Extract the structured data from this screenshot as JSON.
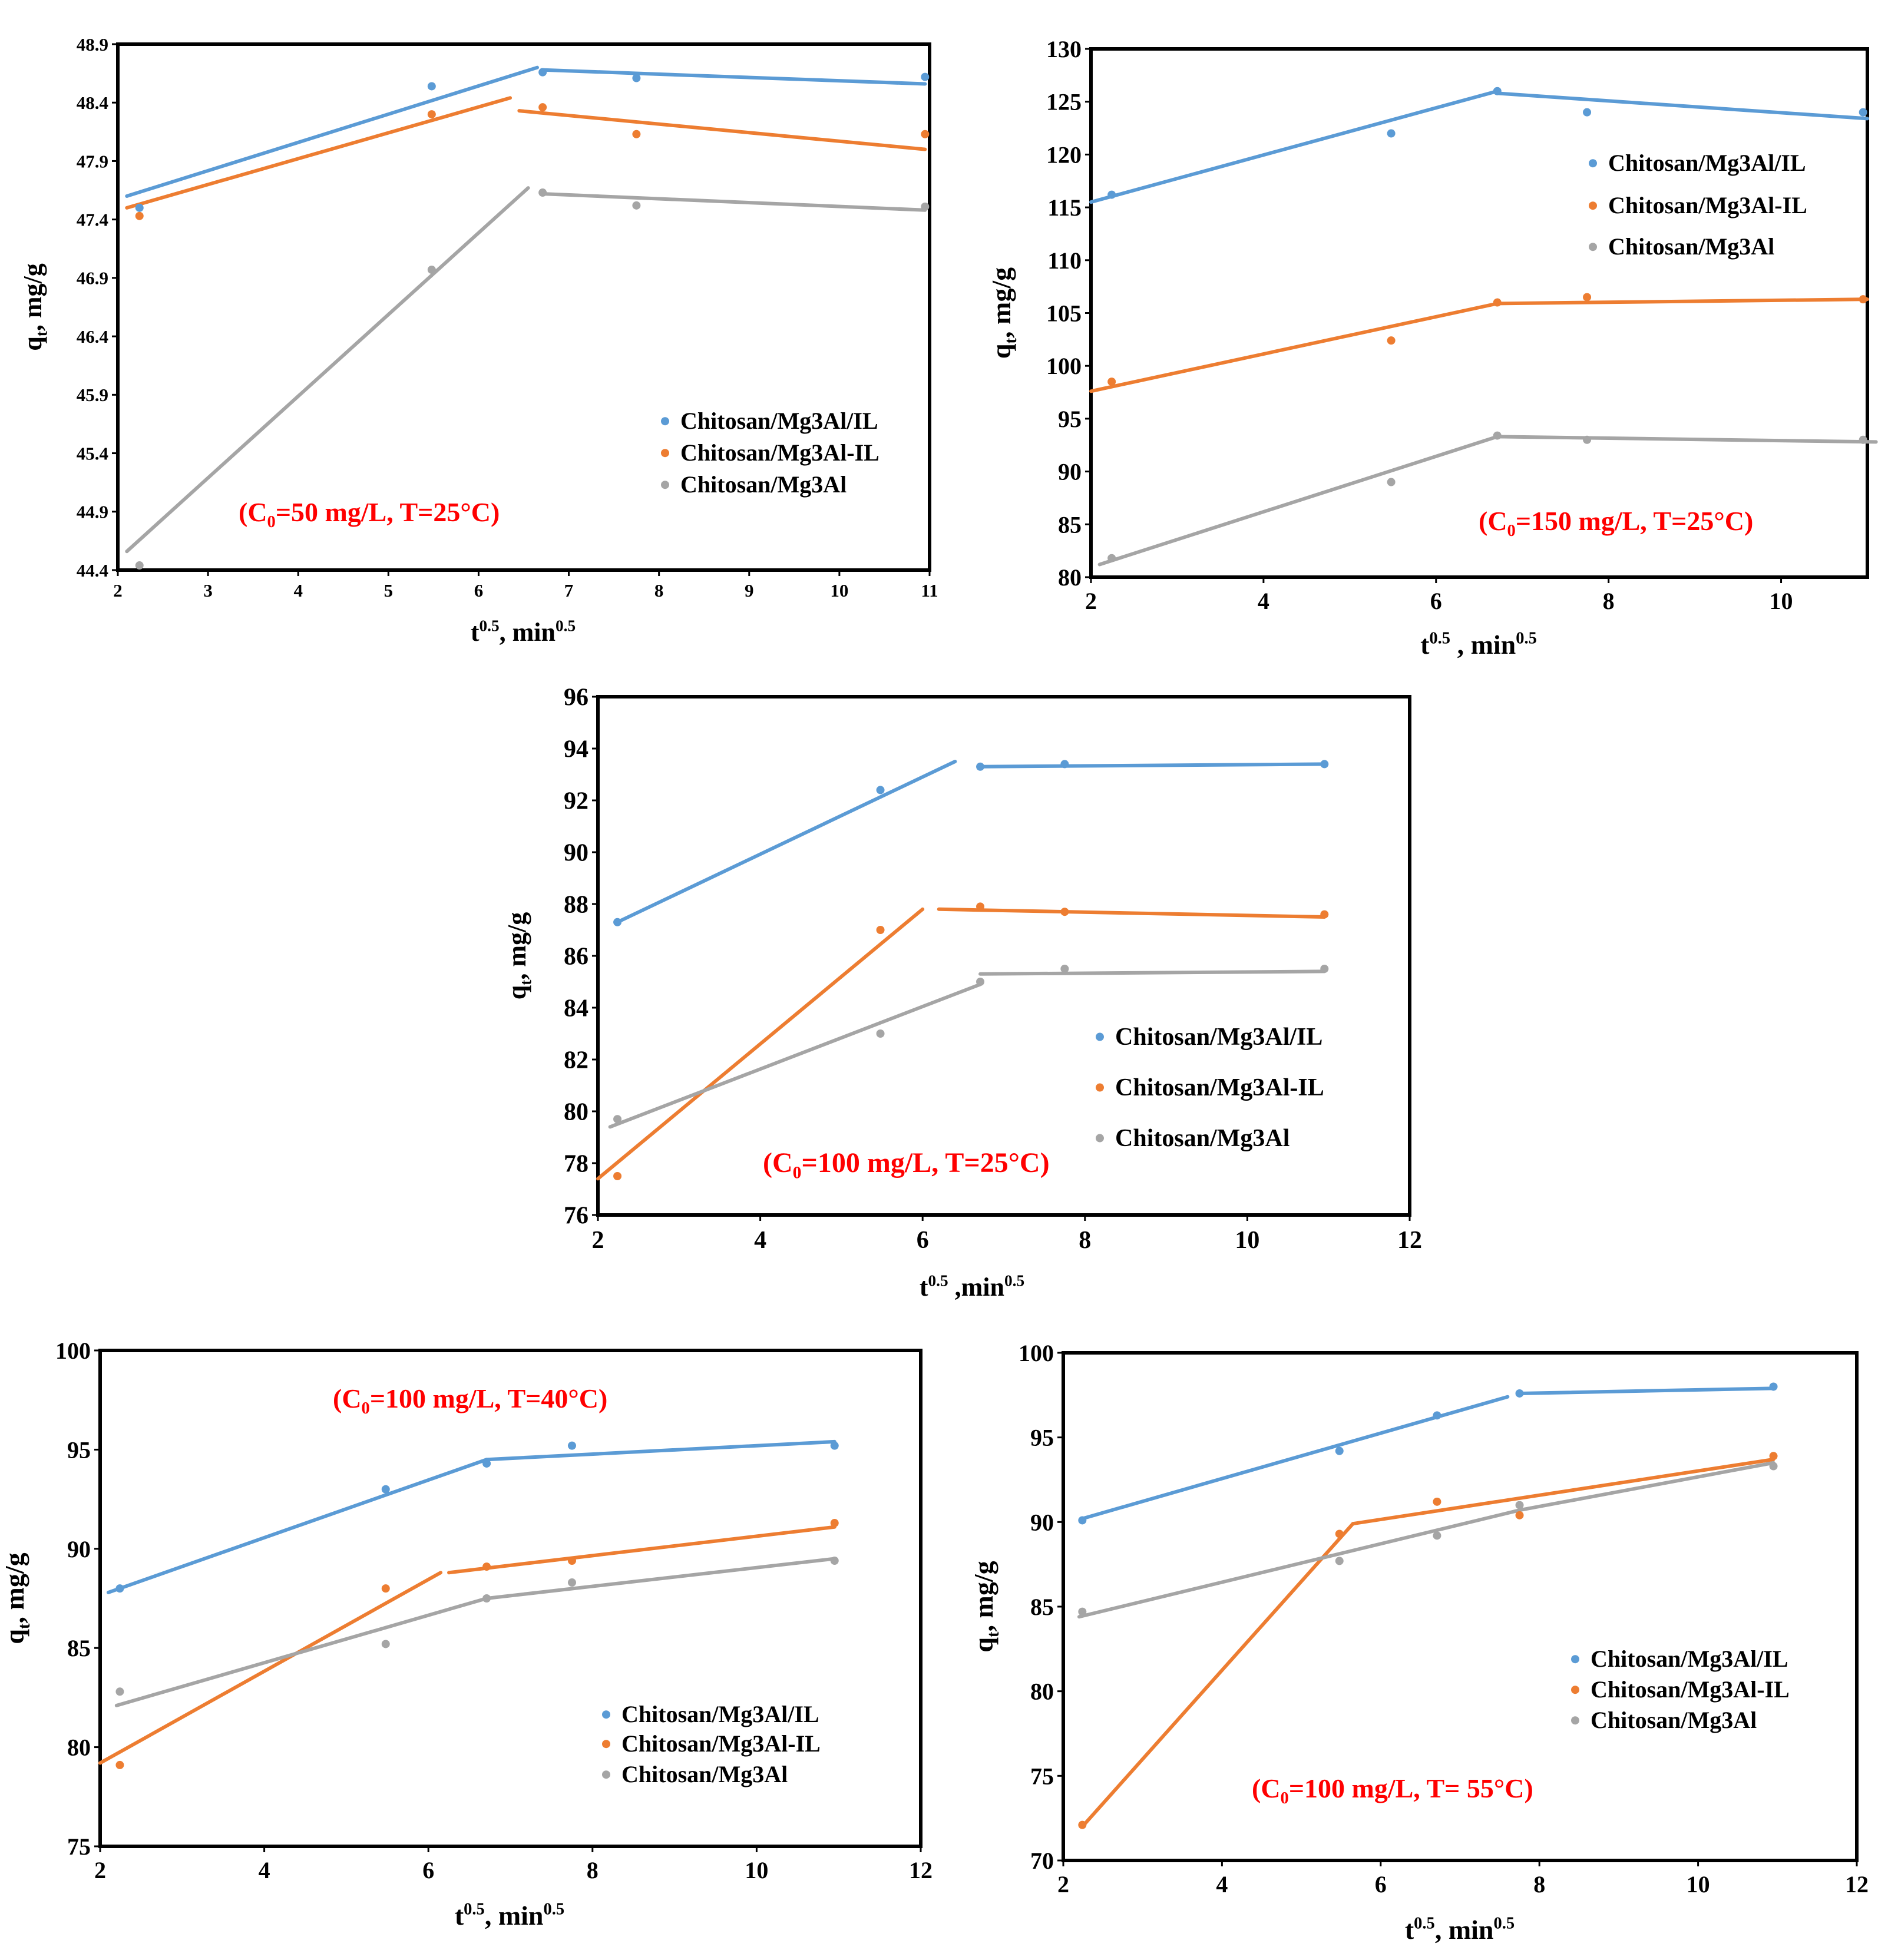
{
  "legend_labels": [
    "Chitosan/Mg3Al/IL",
    "Chitosan/Mg3Al-IL",
    "Chitosan/Mg3Al"
  ],
  "colors": {
    "il": "#5B9BD5",
    "ilDash": "#ED7D31",
    "base": "#A5A5A5",
    "condition": "#FF0000"
  },
  "chart_data": [
    {
      "type": "scatter",
      "condition_parts": [
        "(C",
        "0",
        "=50 mg/L, T=25°C)"
      ],
      "xlabel_parts": [
        "t",
        "0.5",
        ", min",
        "0.5"
      ],
      "ylabel_parts": [
        "q",
        "t",
        ", mg/g"
      ],
      "xlim": [
        2,
        11
      ],
      "ylim": [
        44.4,
        48.9
      ],
      "xticks": [
        2,
        3,
        4,
        5,
        6,
        7,
        8,
        9,
        10,
        11
      ],
      "yticks": [
        44.4,
        44.9,
        45.4,
        45.9,
        46.4,
        46.9,
        47.4,
        47.9,
        48.4,
        48.9
      ],
      "legend_position": "bottom-right",
      "series": [
        {
          "name": "Chitosan/Mg3Al/IL",
          "x": [
            2.24,
            5.48,
            6.71,
            7.75,
            10.95
          ],
          "y": [
            47.5,
            48.54,
            48.66,
            48.61,
            48.62
          ]
        },
        {
          "name": "Chitosan/Mg3Al-IL",
          "x": [
            2.24,
            5.48,
            6.71,
            7.75,
            10.95
          ],
          "y": [
            47.43,
            48.3,
            48.36,
            48.13,
            48.13
          ]
        },
        {
          "name": "Chitosan/Mg3Al",
          "x": [
            2.24,
            5.48,
            6.71,
            7.75,
            10.95
          ],
          "y": [
            44.44,
            46.97,
            47.63,
            47.52,
            47.51
          ]
        }
      ],
      "fits": [
        {
          "series": "Chitosan/Mg3Al/IL",
          "x": [
            2.1,
            6.65
          ],
          "y": [
            47.6,
            48.7
          ]
        },
        {
          "series": "Chitosan/Mg3Al/IL",
          "x": [
            6.7,
            10.95
          ],
          "y": [
            48.68,
            48.56
          ]
        },
        {
          "series": "Chitosan/Mg3Al-IL",
          "x": [
            2.1,
            6.35
          ],
          "y": [
            47.5,
            48.44
          ]
        },
        {
          "series": "Chitosan/Mg3Al-IL",
          "x": [
            6.45,
            10.95
          ],
          "y": [
            48.33,
            48.0
          ]
        },
        {
          "series": "Chitosan/Mg3Al",
          "x": [
            2.1,
            6.55
          ],
          "y": [
            44.56,
            47.67
          ]
        },
        {
          "series": "Chitosan/Mg3Al",
          "x": [
            6.7,
            10.95
          ],
          "y": [
            47.62,
            47.48
          ]
        }
      ]
    },
    {
      "type": "scatter",
      "condition_parts": [
        "(C",
        "0",
        "=150 mg/L, T=25°C)"
      ],
      "xlabel_parts": [
        "t",
        "0.5",
        " , min",
        "0.5"
      ],
      "ylabel_parts": [
        "q",
        "t",
        ",  mg/g"
      ],
      "xlim": [
        2,
        11
      ],
      "ylim": [
        80,
        130
      ],
      "xticks": [
        2,
        4,
        6,
        8,
        10
      ],
      "yticks": [
        80,
        85,
        90,
        95,
        100,
        105,
        110,
        115,
        120,
        125,
        130
      ],
      "legend_position": "top-right",
      "series": [
        {
          "name": "Chitosan/Mg3Al/IL",
          "x": [
            2.24,
            5.48,
            6.71,
            7.75,
            10.95
          ],
          "y": [
            116.2,
            122.0,
            126.0,
            124.0,
            124.0
          ]
        },
        {
          "name": "Chitosan/Mg3Al-IL",
          "x": [
            2.24,
            5.48,
            6.71,
            7.75,
            10.95
          ],
          "y": [
            98.5,
            102.4,
            106.0,
            106.5,
            106.3
          ]
        },
        {
          "name": "Chitosan/Mg3Al",
          "x": [
            2.24,
            5.48,
            6.71,
            7.75,
            10.95
          ],
          "y": [
            81.8,
            89.0,
            93.4,
            93.0,
            93.0
          ]
        }
      ],
      "fits": [
        {
          "series": "Chitosan/Mg3Al/IL",
          "x": [
            2.0,
            6.71
          ],
          "y": [
            115.5,
            126.0
          ]
        },
        {
          "series": "Chitosan/Mg3Al/IL",
          "x": [
            6.71,
            11.0
          ],
          "y": [
            125.8,
            123.4
          ]
        },
        {
          "series": "Chitosan/Mg3Al-IL",
          "x": [
            2.0,
            6.71
          ],
          "y": [
            97.6,
            105.9
          ]
        },
        {
          "series": "Chitosan/Mg3Al-IL",
          "x": [
            6.71,
            11.0
          ],
          "y": [
            105.9,
            106.3
          ]
        },
        {
          "series": "Chitosan/Mg3Al",
          "x": [
            2.1,
            6.71
          ],
          "y": [
            81.2,
            93.3
          ]
        },
        {
          "series": "Chitosan/Mg3Al",
          "x": [
            6.71,
            11.1
          ],
          "y": [
            93.3,
            92.8
          ]
        }
      ]
    },
    {
      "type": "scatter",
      "condition_parts": [
        "(C",
        "0",
        "=100 mg/L, T=25°C)"
      ],
      "xlabel_parts": [
        "t",
        "0.5",
        " ,min",
        "0.5"
      ],
      "ylabel_parts": [
        "q",
        "t",
        ", mg/g"
      ],
      "xlim": [
        2,
        12
      ],
      "ylim": [
        76,
        96
      ],
      "xticks": [
        2,
        4,
        6,
        8,
        10,
        12
      ],
      "yticks": [
        76,
        78,
        80,
        82,
        84,
        86,
        88,
        90,
        92,
        94,
        96
      ],
      "legend_position": "bottom-right",
      "series": [
        {
          "name": "Chitosan/Mg3Al/IL",
          "x": [
            2.24,
            5.48,
            6.71,
            7.75,
            10.95
          ],
          "y": [
            87.3,
            92.4,
            93.3,
            93.4,
            93.4
          ]
        },
        {
          "name": "Chitosan/Mg3Al-IL",
          "x": [
            2.24,
            5.48,
            6.71,
            7.75,
            10.95
          ],
          "y": [
            77.5,
            87.0,
            87.9,
            87.7,
            87.6
          ]
        },
        {
          "name": "Chitosan/Mg3Al",
          "x": [
            2.24,
            5.48,
            6.71,
            7.75,
            10.95
          ],
          "y": [
            79.7,
            83.0,
            85.0,
            85.5,
            85.5
          ]
        }
      ],
      "fits": [
        {
          "series": "Chitosan/Mg3Al/IL",
          "x": [
            2.24,
            6.4
          ],
          "y": [
            87.3,
            93.5
          ]
        },
        {
          "series": "Chitosan/Mg3Al/IL",
          "x": [
            6.7,
            10.95
          ],
          "y": [
            93.3,
            93.4
          ]
        },
        {
          "series": "Chitosan/Mg3Al-IL",
          "x": [
            2.0,
            6.0
          ],
          "y": [
            77.4,
            87.8
          ]
        },
        {
          "series": "Chitosan/Mg3Al-IL",
          "x": [
            6.2,
            10.95
          ],
          "y": [
            87.8,
            87.5
          ]
        },
        {
          "series": "Chitosan/Mg3Al",
          "x": [
            2.15,
            6.71
          ],
          "y": [
            79.4,
            84.9
          ]
        },
        {
          "series": "Chitosan/Mg3Al",
          "x": [
            6.71,
            10.95
          ],
          "y": [
            85.3,
            85.4
          ]
        }
      ]
    },
    {
      "type": "scatter",
      "condition_parts": [
        "(C",
        "0",
        "=100 mg/L, T=40°C)"
      ],
      "xlabel_parts": [
        "t",
        "0.5",
        ", min",
        "0.5"
      ],
      "ylabel_parts": [
        "q",
        "t",
        ", mg/g"
      ],
      "xlim": [
        2,
        12
      ],
      "ylim": [
        75,
        100
      ],
      "xticks": [
        2,
        4,
        6,
        8,
        10,
        12
      ],
      "yticks": [
        75,
        80,
        85,
        90,
        95,
        100
      ],
      "legend_position": "bottom-right",
      "series": [
        {
          "name": "Chitosan/Mg3Al/IL",
          "x": [
            2.24,
            5.48,
            6.71,
            7.75,
            10.95
          ],
          "y": [
            88.0,
            93.0,
            94.3,
            95.2,
            95.2
          ]
        },
        {
          "name": "Chitosan/Mg3Al-IL",
          "x": [
            2.24,
            5.48,
            6.71,
            7.75,
            10.95
          ],
          "y": [
            79.1,
            88.0,
            89.1,
            89.4,
            91.3
          ]
        },
        {
          "name": "Chitosan/Mg3Al",
          "x": [
            2.24,
            5.48,
            6.71,
            7.75,
            10.95
          ],
          "y": [
            82.8,
            85.2,
            87.5,
            88.3,
            89.4
          ]
        }
      ],
      "fits": [
        {
          "series": "Chitosan/Mg3Al/IL",
          "x": [
            2.1,
            6.71
          ],
          "y": [
            87.8,
            94.5
          ]
        },
        {
          "series": "Chitosan/Mg3Al/IL",
          "x": [
            6.71,
            10.95
          ],
          "y": [
            94.5,
            95.4
          ]
        },
        {
          "series": "Chitosan/Mg3Al-IL",
          "x": [
            2.0,
            6.15
          ],
          "y": [
            79.2,
            88.8
          ]
        },
        {
          "series": "Chitosan/Mg3Al-IL",
          "x": [
            6.25,
            10.95
          ],
          "y": [
            88.8,
            91.1
          ]
        },
        {
          "series": "Chitosan/Mg3Al",
          "x": [
            2.2,
            6.71
          ],
          "y": [
            82.1,
            87.5
          ]
        },
        {
          "series": "Chitosan/Mg3Al",
          "x": [
            6.71,
            10.95
          ],
          "y": [
            87.5,
            89.5
          ]
        }
      ]
    },
    {
      "type": "scatter",
      "condition_parts": [
        "(C",
        "0",
        "=100 mg/L, T= 55°C)"
      ],
      "xlabel_parts": [
        "t",
        "0.5",
        ", min",
        "0.5"
      ],
      "ylabel_parts": [
        "q",
        "t",
        ", mg/g"
      ],
      "xlim": [
        2,
        12
      ],
      "ylim": [
        70,
        100
      ],
      "xticks": [
        2,
        4,
        6,
        8,
        10,
        12
      ],
      "yticks": [
        70,
        75,
        80,
        85,
        90,
        95,
        100
      ],
      "legend_position": "bottom-right",
      "series": [
        {
          "name": "Chitosan/Mg3Al/IL",
          "x": [
            2.24,
            5.48,
            6.71,
            7.75,
            10.95
          ],
          "y": [
            90.1,
            94.2,
            96.3,
            97.6,
            98.0
          ]
        },
        {
          "name": "Chitosan/Mg3Al-IL",
          "x": [
            2.24,
            5.48,
            6.71,
            7.75,
            10.95
          ],
          "y": [
            72.1,
            89.3,
            91.2,
            90.4,
            93.9
          ]
        },
        {
          "name": "Chitosan/Mg3Al",
          "x": [
            2.24,
            5.48,
            6.71,
            7.75,
            10.95
          ],
          "y": [
            84.7,
            87.7,
            89.2,
            91.0,
            93.3
          ]
        }
      ],
      "fits": [
        {
          "series": "Chitosan/Mg3Al/IL",
          "x": [
            2.24,
            7.6
          ],
          "y": [
            90.2,
            97.4
          ]
        },
        {
          "series": "Chitosan/Mg3Al/IL",
          "x": [
            7.75,
            10.95
          ],
          "y": [
            97.6,
            97.9
          ]
        },
        {
          "series": "Chitosan/Mg3Al-IL",
          "x": [
            2.24,
            5.65
          ],
          "y": [
            72.0,
            89.9
          ]
        },
        {
          "series": "Chitosan/Mg3Al-IL",
          "x": [
            5.65,
            10.95
          ],
          "y": [
            89.9,
            93.7
          ]
        },
        {
          "series": "Chitosan/Mg3Al",
          "x": [
            2.2,
            7.75
          ],
          "y": [
            84.4,
            90.7
          ]
        },
        {
          "series": "Chitosan/Mg3Al",
          "x": [
            7.75,
            10.95
          ],
          "y": [
            90.7,
            93.5
          ]
        }
      ]
    }
  ]
}
